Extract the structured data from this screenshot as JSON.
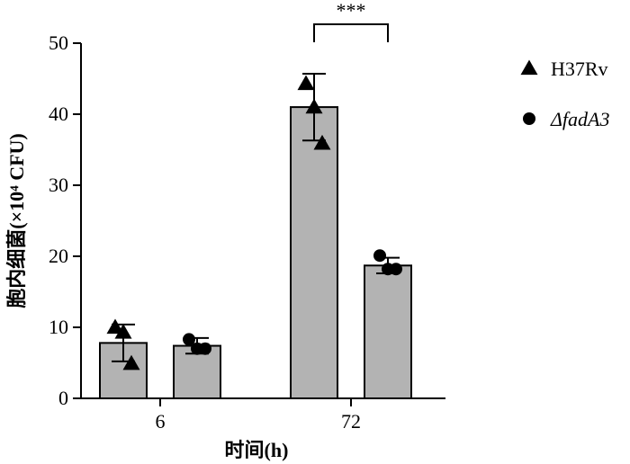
{
  "chart_data": {
    "type": "bar",
    "title": "",
    "xlabel": "时间(h)",
    "ylabel": "胞内细菌(×10⁴ CFU)",
    "ylim": [
      0,
      50
    ],
    "yticks": [
      0,
      10,
      20,
      30,
      40,
      50
    ],
    "categories": [
      "6",
      "72"
    ],
    "series": [
      {
        "name": "H37Rv",
        "marker": "triangle",
        "values": [
          7.8,
          41.0
        ],
        "errors": [
          2.6,
          4.7
        ],
        "points": [
          [
            10.0,
            9.3,
            4.9
          ],
          [
            44.3,
            41.0,
            35.9
          ]
        ]
      },
      {
        "name": "ΔfadA3",
        "marker": "circle",
        "values": [
          7.4,
          18.7
        ],
        "errors": [
          1.1,
          1.1
        ],
        "points": [
          [
            8.3,
            7.0,
            7.0
          ],
          [
            20.1,
            18.2,
            18.2
          ]
        ]
      }
    ],
    "annotations": [
      {
        "text": "***",
        "between": [
          "72:H37Rv",
          "72:ΔfadA3"
        ]
      }
    ],
    "legend_position": "right",
    "grid": false,
    "colors": {
      "bar": "#b3b3b3",
      "edge": "#000000",
      "marker": "#000000"
    }
  }
}
